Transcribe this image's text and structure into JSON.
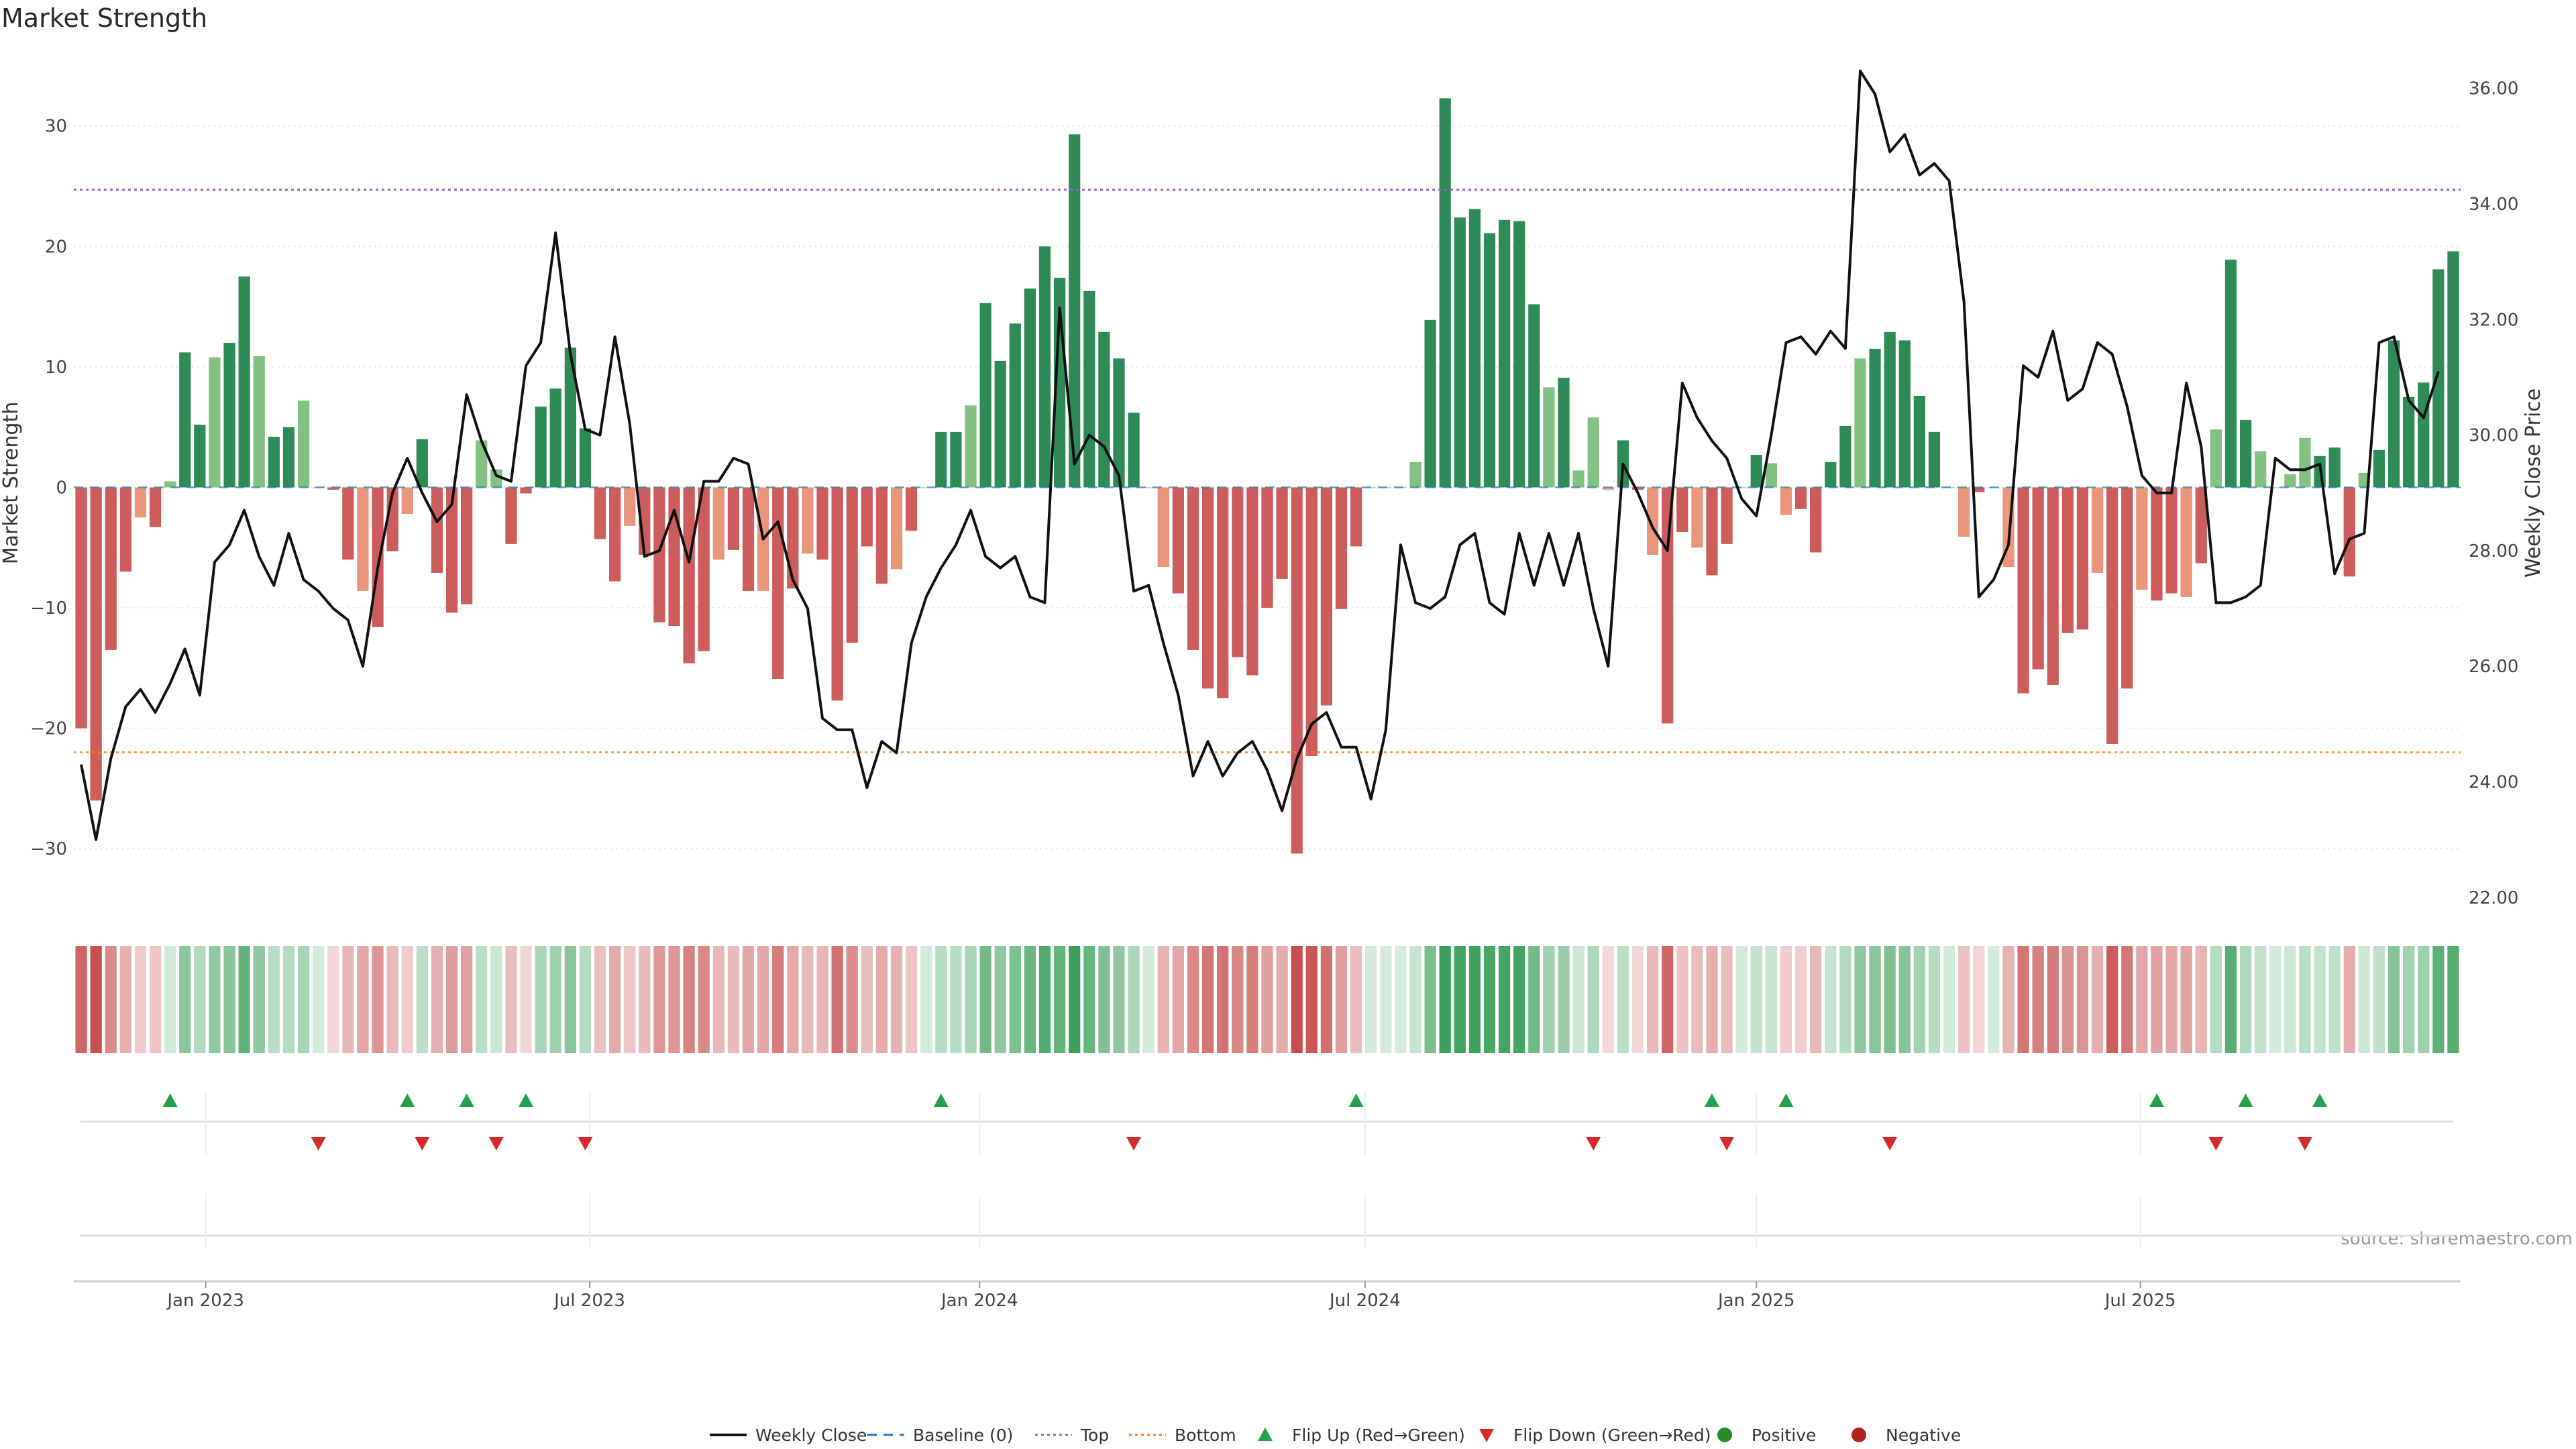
{
  "colors": {
    "green_dark": "#2e8b57",
    "green_light": "#82c182",
    "red_dark": "#cd5c5c",
    "red_light": "#e9967a",
    "line": "#111111",
    "baseline": "#1f77b4",
    "top": "#9467bd",
    "bottom": "#ff7f0e",
    "flip_up": "#22a34a",
    "flip_down": "#d42a2a",
    "positive": "#2a8a2a",
    "negative": "#b22222"
  },
  "chart_data": {
    "type": "bar",
    "title": "Market Strength",
    "xlabel": "",
    "ylabel": "Market Strength",
    "y2label": "Weekly Close Price",
    "ylim": [
      -35,
      36
    ],
    "y2lim": [
      21.8,
      36.6
    ],
    "yticks": [
      -30,
      -20,
      -10,
      0,
      10,
      20,
      30
    ],
    "y2ticks": [
      "22.00",
      "24.00",
      "26.00",
      "28.00",
      "30.00",
      "32.00",
      "34.00",
      "36.00"
    ],
    "x_start": "2022-11-07",
    "week_step_days": 7,
    "xticks": [
      {
        "label": "Jan 2023",
        "week": 8.4
      },
      {
        "label": "Jul 2023",
        "week": 34.3
      },
      {
        "label": "Jan 2024",
        "week": 60.6
      },
      {
        "label": "Jul 2024",
        "week": 86.6
      },
      {
        "label": "Jan 2025",
        "week": 113.0
      },
      {
        "label": "Jul 2025",
        "week": 138.9
      }
    ],
    "top_line": 24.7,
    "bottom_line": -22.0,
    "baseline": 0,
    "series": [
      {
        "name": "Market Strength",
        "type": "bar",
        "values": [
          -20,
          -26,
          -13.5,
          -7,
          -2.5,
          -3.3,
          0.5,
          11.2,
          5.2,
          10.8,
          12,
          17.5,
          10.9,
          4.2,
          5,
          7.2,
          0,
          -0.2,
          -6,
          -8.6,
          -11.6,
          -5.3,
          -2.2,
          4,
          -7.1,
          -10.4,
          -9.7,
          3.9,
          1.5,
          -4.7,
          -0.5,
          6.7,
          8.2,
          11.6,
          4.9,
          -4.3,
          -7.8,
          -3.2,
          -5.6,
          -11.2,
          -11.5,
          -14.6,
          -13.6,
          -6,
          -5.2,
          -8.6,
          -8.6,
          -15.9,
          -8.4,
          -5.5,
          -6,
          -17.7,
          -12.9,
          -4.9,
          -8,
          -6.8,
          -3.6,
          0,
          4.6,
          4.6,
          6.8,
          15.3,
          10.5,
          13.6,
          16.5,
          20,
          17.4,
          29.3,
          16.3,
          12.9,
          10.7,
          6.2,
          0,
          -6.6,
          -8.8,
          -13.5,
          -16.7,
          -17.5,
          -14.1,
          -15.6,
          -10,
          -7.6,
          -30.4,
          -22.3,
          -18.1,
          -10.1,
          -4.9,
          0,
          0,
          0,
          2.1,
          13.9,
          32.3,
          22.4,
          23.1,
          21.1,
          22.2,
          22.1,
          15.2,
          8.3,
          9.1,
          1.4,
          5.8,
          -0.2,
          3.9,
          -0.2,
          -5.6,
          -19.6,
          -3.7,
          -5,
          -7.3,
          -4.7,
          0,
          2.7,
          2,
          -2.3,
          -1.8,
          -5.4,
          2.1,
          5.1,
          10.7,
          11.5,
          12.9,
          12.2,
          7.6,
          4.6,
          0,
          -4.1,
          -0.4,
          0,
          -6.6,
          -17.1,
          -15.1,
          -16.4,
          -12.1,
          -11.8,
          -7.1,
          -21.3,
          -16.7,
          -8.5,
          -9.4,
          -8.8,
          -9.1,
          -6.3,
          4.8,
          18.9,
          5.6,
          3,
          0,
          1.1,
          4.1,
          2.6,
          3.3,
          -7.4,
          1.2,
          3.1,
          12.2,
          7.5,
          8.7,
          18.1,
          19.6
        ]
      },
      {
        "name": "Weekly Close",
        "type": "line",
        "values": [
          24.3,
          23,
          24.4,
          25.3,
          25.6,
          25.2,
          25.7,
          26.3,
          25.5,
          27.8,
          28.1,
          28.7,
          27.9,
          27.4,
          28.3,
          27.5,
          27.3,
          27,
          26.8,
          26,
          27.7,
          29,
          29.6,
          29,
          28.5,
          28.8,
          30.7,
          29.9,
          29.3,
          29.2,
          31.2,
          31.6,
          33.5,
          31.4,
          30.1,
          30,
          31.7,
          30.2,
          27.9,
          28,
          28.7,
          27.8,
          29.2,
          29.2,
          29.6,
          29.5,
          28.2,
          28.5,
          27.5,
          27,
          25.1,
          24.9,
          24.9,
          23.9,
          24.7,
          24.5,
          26.4,
          27.2,
          27.7,
          28.1,
          28.7,
          27.9,
          27.7,
          27.9,
          27.2,
          27.1,
          32.2,
          29.5,
          30,
          29.8,
          29.3,
          27.3,
          27.4,
          26.4,
          25.5,
          24.1,
          24.7,
          24.1,
          24.5,
          24.7,
          24.2,
          23.5,
          24.4,
          25,
          25.2,
          24.6,
          24.6,
          23.7,
          24.9,
          28.1,
          27.1,
          27,
          27.2,
          28.1,
          28.3,
          27.1,
          26.9,
          28.3,
          27.4,
          28.3,
          27.4,
          28.3,
          27,
          26,
          29.5,
          29,
          28.4,
          28,
          30.9,
          30.3,
          29.9,
          29.6,
          28.9,
          28.6,
          30,
          31.6,
          31.7,
          31.4,
          31.8,
          31.5,
          36.3,
          35.9,
          34.9,
          35.2,
          34.5,
          34.7,
          34.4,
          32.3,
          27.2,
          27.5,
          28.1,
          31.2,
          31,
          31.8,
          30.6,
          30.8,
          31.6,
          31.4,
          30.5,
          29.3,
          29,
          29,
          30.9,
          29.8,
          27.1,
          27.1,
          27.2,
          27.4,
          29.6,
          29.4,
          29.4,
          29.5,
          27.6,
          28.2,
          28.3,
          31.6,
          31.7,
          30.6,
          30.3,
          31.1
        ]
      }
    ],
    "heat_strip_values": [
      -20,
      -26,
      -13.5,
      -7,
      -2.5,
      -3.3,
      0.5,
      11.2,
      5.2,
      10.8,
      12,
      17.5,
      10.9,
      4.2,
      5,
      7.2,
      0,
      -0.2,
      -6,
      -8.6,
      -11.6,
      -5.3,
      -2.2,
      4,
      -7.1,
      -10.4,
      -9.7,
      3.9,
      1.5,
      -4.7,
      -0.5,
      6.7,
      8.2,
      11.6,
      4.9,
      -4.3,
      -7.8,
      -3.2,
      -5.6,
      -11.2,
      -11.5,
      -14.6,
      -13.6,
      -6,
      -5.2,
      -8.6,
      -8.6,
      -15.9,
      -8.4,
      -5.5,
      -6,
      -17.7,
      -12.9,
      -4.9,
      -8,
      -6.8,
      -3.6,
      0,
      4.6,
      4.6,
      6.8,
      15.3,
      10.5,
      13.6,
      16.5,
      20,
      17.4,
      29.3,
      16.3,
      12.9,
      10.7,
      6.2,
      0,
      -6.6,
      -8.8,
      -13.5,
      -16.7,
      -17.5,
      -14.1,
      -15.6,
      -10,
      -7.6,
      -30.4,
      -22.3,
      -18.1,
      -10.1,
      -4.9,
      0,
      0,
      0,
      2.1,
      13.9,
      32.3,
      22.4,
      23.1,
      21.1,
      22.2,
      22.1,
      15.2,
      8.3,
      9.1,
      1.4,
      5.8,
      -0.2,
      3.9,
      -0.2,
      -5.6,
      -19.6,
      -3.7,
      -5,
      -7.3,
      -4.7,
      0,
      2.7,
      2,
      -2.3,
      -1.8,
      -5.4,
      2.1,
      5.1,
      10.7,
      11.5,
      12.9,
      12.2,
      7.6,
      4.6,
      0,
      -4.1,
      -0.4,
      0,
      -6.6,
      -17.1,
      -15.1,
      -16.4,
      -12.1,
      -11.8,
      -7.1,
      -21.3,
      -16.7,
      -8.5,
      -9.4,
      -8.8,
      -9.1,
      -6.3,
      4.8,
      18.9,
      5.6,
      3,
      0,
      1.1,
      4.1,
      2.6,
      3.3,
      -7.4,
      1.2,
      3.1,
      12.2,
      7.5,
      8.7,
      18.1,
      19.6
    ],
    "flip_up_weeks": [
      6,
      22,
      26,
      30,
      58,
      86,
      110,
      115,
      140,
      146,
      151
    ],
    "flip_down_weeks": [
      16,
      23,
      28,
      34,
      71,
      102,
      111,
      122,
      144,
      150
    ],
    "legend": [
      {
        "label": "Weekly Close",
        "kind": "line"
      },
      {
        "label": "Baseline (0)",
        "kind": "dash"
      },
      {
        "label": "Top",
        "kind": "dot-top"
      },
      {
        "label": "Bottom",
        "kind": "dot-bottom"
      },
      {
        "label": "Flip Up (Red→Green)",
        "kind": "tri-up"
      },
      {
        "label": "Flip Down (Green→Red)",
        "kind": "tri-down"
      },
      {
        "label": "Positive",
        "kind": "dot-pos"
      },
      {
        "label": "Negative",
        "kind": "dot-neg"
      }
    ],
    "source": "source: sharemaestro.com"
  }
}
